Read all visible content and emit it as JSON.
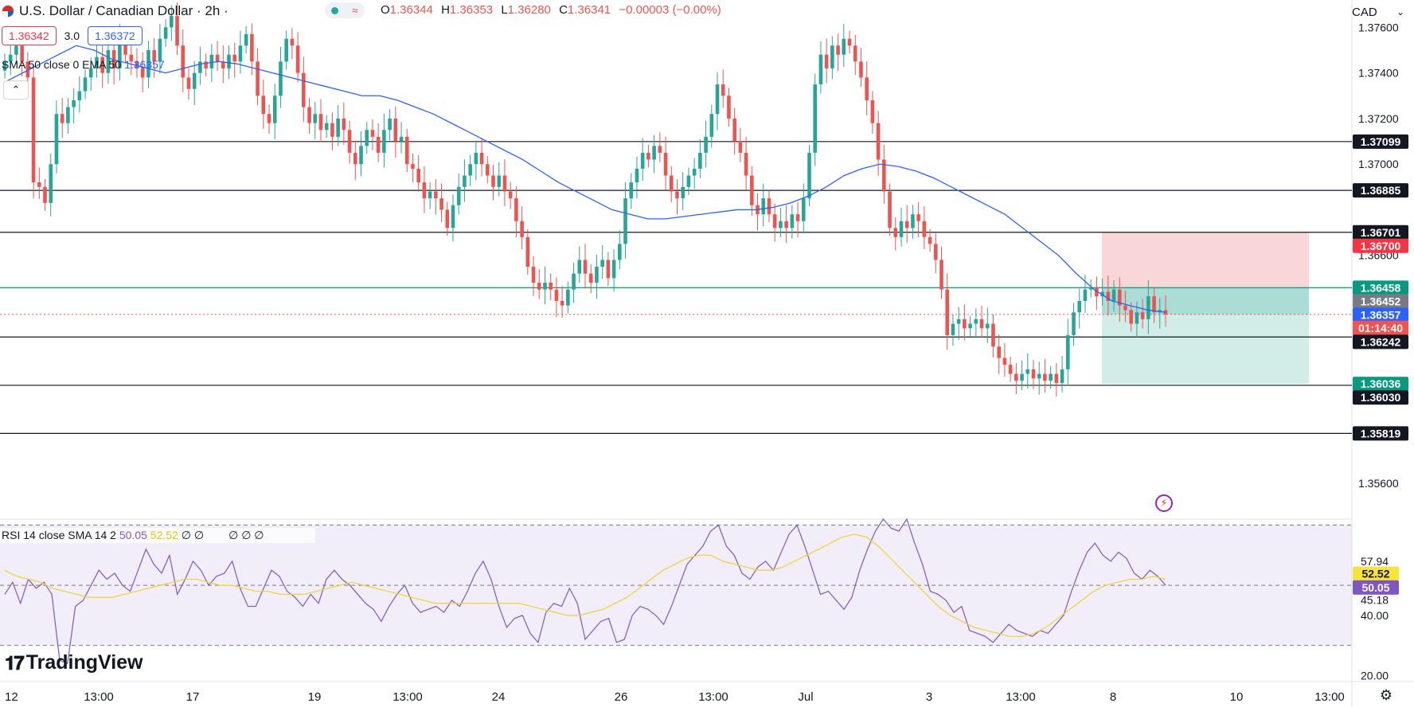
{
  "header": {
    "symbol": "U.S. Dollar / Canadian Dollar · 2h ·",
    "ohlc": {
      "o_label": "O",
      "o": "1.36344",
      "h_label": "H",
      "h": "1.36353",
      "l_label": "L",
      "l": "1.36280",
      "c_label": "C",
      "c": "1.36341",
      "change": "−0.00003 (−0.00%)"
    }
  },
  "trade": {
    "bid": "1.36342",
    "spread": "3.0",
    "ask": "1.36372"
  },
  "indicators": {
    "main_legend": "SMA 50 close 0 EMA 50",
    "main_value": "1.36357",
    "rsi_label": "RSI 14 close SMA 14 2",
    "rsi_value": "50.05",
    "rsi_sma_value": "52.52",
    "rsi_extra": "∅ ∅",
    "rsi_extra2": "∅ ∅ ∅"
  },
  "currency": "CAD",
  "brand": "TradingView",
  "colors": {
    "up": "#26a69a",
    "down": "#ef5350",
    "ema": "#2962ff",
    "rsi": "#7e57c2",
    "rsi_sma": "#f2d12e",
    "level": "#131722",
    "stop_zone": "#f8d0d2",
    "target_zone": "#cdeae4",
    "entry": "#22a08c"
  },
  "chart_data": {
    "type": "candlestick",
    "timeframe": "2h",
    "ylim": [
      1.3545,
      1.3772
    ],
    "price_ticks": [
      "1.37600",
      "1.37400",
      "1.37200",
      "1.37000",
      "1.36600",
      "1.35600"
    ],
    "x_ticks": [
      "12",
      "13:00",
      "17",
      "19",
      "13:00",
      "24",
      "26",
      "13:00",
      "Jul",
      "3",
      "13:00",
      "8",
      "10",
      "13:00"
    ],
    "horizontal_levels": [
      "1.37099",
      "1.36885",
      "1.36701",
      "1.36458",
      "1.36242",
      "1.36030",
      "1.35819"
    ],
    "price_labels": [
      {
        "value": "1.37099",
        "style": "level"
      },
      {
        "value": "1.36885",
        "style": "level"
      },
      {
        "value": "1.36701",
        "style": "level"
      },
      {
        "value": "1.36700",
        "style": "stop"
      },
      {
        "value": "1.36458",
        "style": "target"
      },
      {
        "value": "1.36452",
        "style": "gray"
      },
      {
        "value": "1.36357",
        "style": "ema"
      },
      {
        "value": "1.36341",
        "style": "last"
      },
      {
        "value": "01:14:40",
        "style": "last-timer"
      },
      {
        "value": "1.36242",
        "style": "level"
      },
      {
        "value": "1.36036",
        "style": "target"
      },
      {
        "value": "1.36030",
        "style": "level"
      },
      {
        "value": "1.35819",
        "style": "level"
      }
    ],
    "position": {
      "stop": 1.367,
      "entry": 1.36458,
      "target": 1.36036
    },
    "last_price": 1.36341,
    "closes": [
      1.3745,
      1.3748,
      1.3752,
      1.3745,
      1.3738,
      1.3692,
      1.369,
      1.3683,
      1.37,
      1.3722,
      1.3718,
      1.3725,
      1.3728,
      1.3732,
      1.3738,
      1.3742,
      1.3747,
      1.374,
      1.375,
      1.3742,
      1.3755,
      1.3748,
      1.3745,
      1.3742,
      1.3738,
      1.375,
      1.3745,
      1.3755,
      1.376,
      1.3765,
      1.3752,
      1.3738,
      1.3733,
      1.374,
      1.3745,
      1.3742,
      1.3748,
      1.3745,
      1.3742,
      1.3748,
      1.3745,
      1.3752,
      1.3757,
      1.3745,
      1.373,
      1.3722,
      1.3718,
      1.373,
      1.3745,
      1.3755,
      1.3752,
      1.374,
      1.3725,
      1.3718,
      1.3722,
      1.3715,
      1.3718,
      1.3712,
      1.372,
      1.3715,
      1.3705,
      1.37,
      1.3708,
      1.3715,
      1.3712,
      1.3705,
      1.3715,
      1.372,
      1.371,
      1.3712,
      1.37,
      1.3698,
      1.3692,
      1.3685,
      1.3688,
      1.3685,
      1.368,
      1.3672,
      1.3682,
      1.369,
      1.3695,
      1.37,
      1.3705,
      1.37,
      1.3695,
      1.369,
      1.3695,
      1.3688,
      1.3685,
      1.3675,
      1.3668,
      1.3655,
      1.3648,
      1.3645,
      1.3648,
      1.3645,
      1.364,
      1.3638,
      1.3645,
      1.3652,
      1.3658,
      1.3652,
      1.3648,
      1.3655,
      1.3658,
      1.365,
      1.3658,
      1.3665,
      1.3685,
      1.3692,
      1.3698,
      1.3705,
      1.3702,
      1.3708,
      1.3705,
      1.3695,
      1.3688,
      1.3685,
      1.369,
      1.3695,
      1.3698,
      1.3705,
      1.3712,
      1.3722,
      1.3735,
      1.373,
      1.372,
      1.371,
      1.3705,
      1.3695,
      1.3682,
      1.3678,
      1.3685,
      1.3678,
      1.3672,
      1.3675,
      1.3672,
      1.3678,
      1.3675,
      1.3685,
      1.3705,
      1.3735,
      1.3748,
      1.3742,
      1.3752,
      1.3748,
      1.3755,
      1.3752,
      1.3745,
      1.3738,
      1.3728,
      1.3718,
      1.3702,
      1.3688,
      1.3672,
      1.3668,
      1.3675,
      1.3672,
      1.3678,
      1.3675,
      1.3668,
      1.3665,
      1.3658,
      1.3645,
      1.3625,
      1.363,
      1.3632,
      1.3628,
      1.363,
      1.3632,
      1.3628,
      1.363,
      1.362,
      1.3615,
      1.3612,
      1.3608,
      1.3605,
      1.3608,
      1.361,
      1.3606,
      1.3608,
      1.3605,
      1.3608,
      1.3604,
      1.361,
      1.3625,
      1.3635,
      1.364,
      1.3645,
      1.3646,
      1.3642,
      1.3644,
      1.364,
      1.3645,
      1.3638,
      1.3636,
      1.363,
      1.3635,
      1.3632,
      1.3642,
      1.3635,
      1.3636,
      1.3634
    ],
    "ema_50": [
      1.3736,
      1.374,
      1.3744,
      1.3748,
      1.3752,
      1.375,
      1.3746,
      1.3744,
      1.3742,
      1.374,
      1.3742,
      1.3744,
      1.3745,
      1.3744,
      1.3742,
      1.374,
      1.3738,
      1.3736,
      1.3734,
      1.3732,
      1.373,
      1.373,
      1.3728,
      1.3725,
      1.3722,
      1.3718,
      1.3714,
      1.371,
      1.3706,
      1.3702,
      1.3697,
      1.3692,
      1.3688,
      1.3684,
      1.368,
      1.3678,
      1.3676,
      1.3676,
      1.3677,
      1.3678,
      1.3679,
      1.368,
      1.368,
      1.3681,
      1.3683,
      1.3686,
      1.369,
      1.3695,
      1.3698,
      1.37,
      1.3699,
      1.3697,
      1.3694,
      1.369,
      1.3686,
      1.3682,
      1.3678,
      1.3672,
      1.3666,
      1.366,
      1.3652,
      1.3645,
      1.364,
      1.3638,
      1.3636,
      1.3635
    ],
    "rsi_14": [
      47,
      51,
      44,
      52,
      49,
      51,
      47,
      25,
      24,
      43,
      45,
      50,
      55,
      52,
      54,
      50,
      48,
      55,
      62,
      57,
      54,
      60,
      47,
      52,
      58,
      55,
      50,
      53,
      54,
      58,
      49,
      43,
      43,
      49,
      55,
      53,
      48,
      46,
      43,
      47,
      44,
      52,
      55,
      52,
      50,
      47,
      44,
      42,
      38,
      43,
      47,
      50,
      44,
      41,
      42,
      43,
      41,
      45,
      43,
      48,
      54,
      58,
      52,
      43,
      36,
      39,
      40,
      34,
      31,
      41,
      44,
      43,
      49,
      44,
      32,
      35,
      38,
      39,
      31,
      32,
      40,
      43,
      42,
      40,
      37,
      43,
      50,
      57,
      60,
      63,
      68,
      70,
      63,
      60,
      54,
      52,
      56,
      58,
      55,
      61,
      67,
      70,
      63,
      55,
      47,
      48,
      45,
      42,
      46,
      55,
      62,
      68,
      72,
      69,
      68,
      72,
      64,
      57,
      48,
      47,
      45,
      41,
      43,
      35,
      34,
      33,
      31,
      34,
      37,
      35,
      34,
      33,
      35,
      34,
      37,
      40,
      48,
      55,
      61,
      64,
      60,
      58,
      61,
      59,
      54,
      52,
      55,
      53,
      50
    ],
    "rsi_sma_14": [
      55,
      53,
      52,
      51,
      49,
      48,
      47,
      46,
      46,
      46,
      47,
      48,
      49,
      50,
      51,
      52,
      52,
      51,
      50,
      50,
      49,
      48,
      48,
      47,
      47,
      47,
      48,
      49,
      50,
      51,
      50,
      49,
      48,
      47,
      46,
      45,
      44,
      44,
      44,
      44,
      44,
      44,
      44,
      44,
      43,
      42,
      41,
      40,
      40,
      41,
      42,
      44,
      46,
      49,
      52,
      55,
      57,
      59,
      60,
      60,
      58,
      57,
      56,
      55,
      55,
      56,
      58,
      60,
      62,
      64,
      66,
      67,
      66,
      63,
      59,
      55,
      51,
      47,
      43,
      40,
      38,
      36,
      35,
      34,
      33,
      33,
      34,
      36,
      39,
      42,
      45,
      48,
      50,
      51,
      52,
      52,
      53,
      52
    ],
    "rsi_ylim": [
      18,
      72
    ],
    "rsi_ticks": [
      "57.94",
      "45.18",
      "40.00",
      "20.00"
    ],
    "rsi_labels": [
      {
        "value": "52.52",
        "style": "rsi-sma"
      },
      {
        "value": "50.05",
        "style": "rsi"
      }
    ],
    "rsi_bands": [
      30,
      70
    ]
  }
}
